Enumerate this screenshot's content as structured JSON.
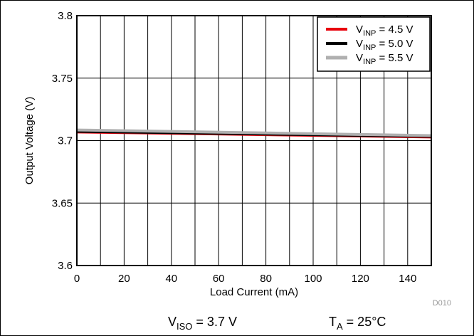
{
  "chart_data": {
    "type": "line",
    "title": "",
    "xlabel": "Load Current (mA)",
    "ylabel": "Output Voltage (V)",
    "xlim": [
      0,
      150
    ],
    "ylim": [
      3.6,
      3.8
    ],
    "x_ticks": [
      "0",
      "20",
      "40",
      "60",
      "80",
      "100",
      "120",
      "140"
    ],
    "y_ticks": [
      "3.6",
      "3.65",
      "3.7",
      "3.75",
      "3.8"
    ],
    "grid": true,
    "legend_position": "top-right",
    "series": [
      {
        "name_main": "V",
        "name_sub": "INP",
        "name_rest": " = 4.5 V",
        "color": "#e8000b",
        "x": [
          0,
          150
        ],
        "y": [
          3.7065,
          3.7025
        ]
      },
      {
        "name_main": "V",
        "name_sub": "INP",
        "name_rest": " = 5.0 V",
        "color": "#000000",
        "x": [
          0,
          150
        ],
        "y": [
          3.707,
          3.703
        ]
      },
      {
        "name_main": "V",
        "name_sub": "INP",
        "name_rest": " = 5.5 V",
        "color": "#b0b0b0",
        "x": [
          0,
          150
        ],
        "y": [
          3.7085,
          3.704
        ]
      }
    ],
    "figure_code": "D010",
    "conditions": [
      {
        "main": "V",
        "sub": "ISO",
        "rest": " = 3.7 V"
      },
      {
        "main": "T",
        "sub": "A",
        "rest": " = 25°C"
      }
    ]
  }
}
